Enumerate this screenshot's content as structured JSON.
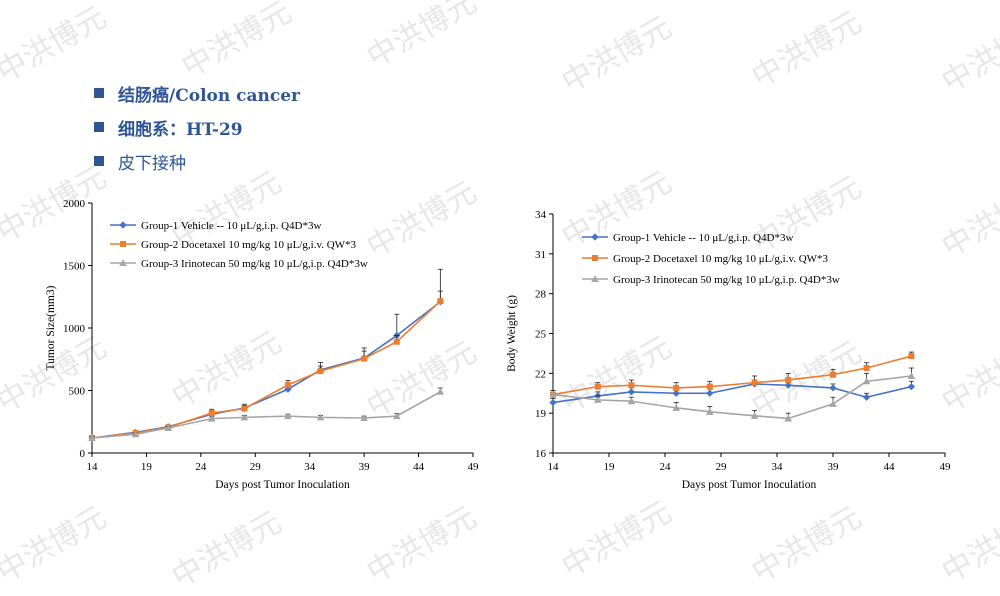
{
  "watermark_text": "中洪博元",
  "bullets": [
    {
      "text": "结肠癌/Colon cancer",
      "bold": true
    },
    {
      "text": "细胞系：HT-29",
      "bold": true
    },
    {
      "text": "皮下接种",
      "bold": false
    }
  ],
  "bullet_color": "#2f5597",
  "chart_data": [
    {
      "type": "line",
      "xlabel": "Days post Tumor Inoculation",
      "ylabel": "Tumor Size(mm3)",
      "xlim": [
        14,
        49
      ],
      "ylim": [
        0,
        2000
      ],
      "xticks": [
        14,
        19,
        24,
        29,
        34,
        39,
        44,
        49
      ],
      "yticks": [
        0,
        500,
        1000,
        1500,
        2000
      ],
      "legend_position": "top-left",
      "series": [
        {
          "name": "Group-1 Vehicle -- 10 μL/g,i.p. Q4D*3w",
          "color": "#4472c4",
          "marker": "diamond",
          "x": [
            14,
            18,
            21,
            25,
            28,
            32,
            35,
            39,
            42,
            46
          ],
          "y": [
            120,
            165,
            210,
            310,
            360,
            510,
            665,
            760,
            940,
            1210
          ],
          "err": [
            10,
            15,
            15,
            30,
            30,
            40,
            60,
            80,
            170,
            260
          ]
        },
        {
          "name": "Group-2 Docetaxel 10 mg/kg 10 μL/g,i.v. QW*3",
          "color": "#ed7d31",
          "marker": "square",
          "x": [
            14,
            18,
            21,
            25,
            28,
            32,
            35,
            39,
            42,
            46
          ],
          "y": [
            120,
            160,
            205,
            320,
            355,
            545,
            655,
            755,
            890,
            1215
          ],
          "err": [
            10,
            12,
            15,
            30,
            25,
            35,
            40,
            60,
            50,
            80
          ]
        },
        {
          "name": "Group-3 Irinotecan 50 mg/kg 10 μL/g,i.p. Q4D*3w",
          "color": "#a5a5a5",
          "marker": "triangle",
          "x": [
            14,
            18,
            21,
            25,
            28,
            32,
            35,
            39,
            42,
            46
          ],
          "y": [
            120,
            150,
            200,
            275,
            285,
            295,
            285,
            280,
            295,
            490
          ],
          "err": [
            10,
            10,
            12,
            15,
            15,
            15,
            15,
            15,
            20,
            30
          ]
        }
      ]
    },
    {
      "type": "line",
      "xlabel": "Days post Tumor Inoculation",
      "ylabel": "Body Weight (g)",
      "xlim": [
        14,
        49
      ],
      "ylim": [
        16,
        34
      ],
      "xticks": [
        14,
        19,
        24,
        29,
        34,
        39,
        44,
        49
      ],
      "yticks": [
        16,
        19,
        22,
        25,
        28,
        31,
        34
      ],
      "legend_position": "top-left",
      "series": [
        {
          "name": "Group-1 Vehicle -- 10 μL/g,i.p. Q4D*3w",
          "color": "#4472c4",
          "marker": "diamond",
          "x": [
            14,
            18,
            21,
            25,
            28,
            32,
            35,
            39,
            42,
            46
          ],
          "y": [
            19.8,
            20.3,
            20.6,
            20.5,
            20.5,
            21.2,
            21.1,
            20.9,
            20.2,
            21.0
          ],
          "err": [
            0.3,
            0.3,
            0.3,
            0.3,
            0.3,
            0.3,
            0.3,
            0.3,
            0.3,
            0.4
          ]
        },
        {
          "name": "Group-2 Docetaxel 10 mg/kg 10 μL/g,i.v. QW*3",
          "color": "#ed7d31",
          "marker": "square",
          "x": [
            14,
            18,
            21,
            25,
            28,
            32,
            35,
            39,
            42,
            46
          ],
          "y": [
            20.4,
            21.0,
            21.1,
            20.9,
            21.0,
            21.3,
            21.5,
            21.9,
            22.4,
            23.3
          ],
          "err": [
            0.3,
            0.3,
            0.4,
            0.4,
            0.4,
            0.5,
            0.5,
            0.4,
            0.4,
            0.3
          ]
        },
        {
          "name": "Group-3 Irinotecan 50 mg/kg 10 μL/g,i.p. Q4D*3w",
          "color": "#a5a5a5",
          "marker": "triangle",
          "x": [
            14,
            18,
            21,
            25,
            28,
            32,
            35,
            39,
            42,
            46
          ],
          "y": [
            20.4,
            20.0,
            19.9,
            19.4,
            19.1,
            18.8,
            18.6,
            19.7,
            21.4,
            21.8
          ],
          "err": [
            0.3,
            0.3,
            0.3,
            0.4,
            0.4,
            0.4,
            0.4,
            0.5,
            0.6,
            0.6
          ]
        }
      ]
    }
  ]
}
